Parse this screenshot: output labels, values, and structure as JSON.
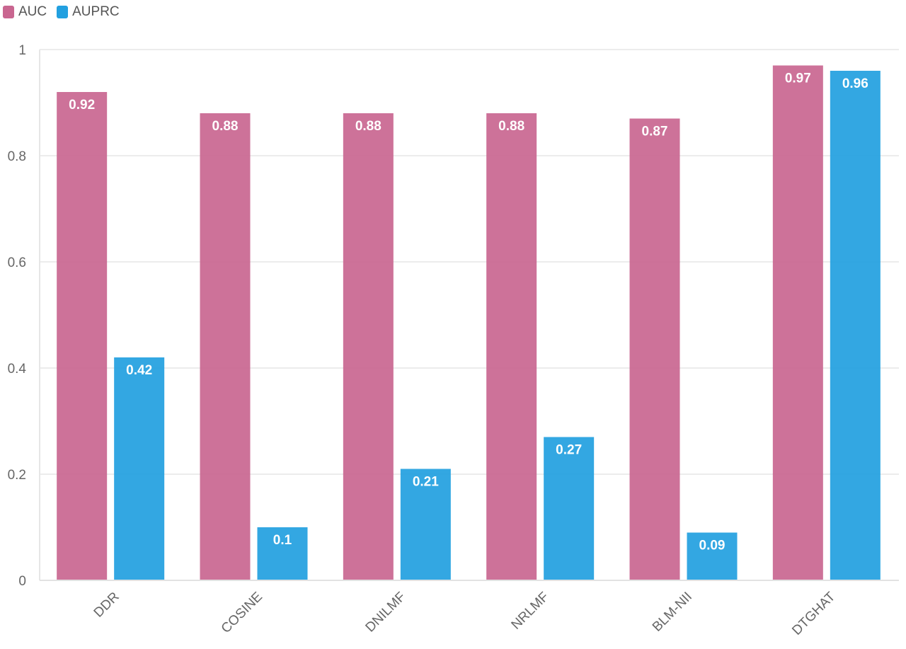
{
  "chart_data": {
    "type": "bar",
    "title": "",
    "xlabel": "",
    "ylabel": "",
    "categories": [
      "DDR",
      "COSINE",
      "DNILMF",
      "NRLMF",
      "BLM-NII",
      "DTGHAT"
    ],
    "series": [
      {
        "name": "AUC",
        "color": "#c96690",
        "values": [
          0.92,
          0.88,
          0.88,
          0.88,
          0.87,
          0.97
        ],
        "labels": [
          "0.92",
          "0.88",
          "0.88",
          "0.88",
          "0.87",
          "0.97"
        ]
      },
      {
        "name": "AUPRC",
        "color": "#22a0e0",
        "values": [
          0.42,
          0.1,
          0.21,
          0.27,
          0.09,
          0.96
        ],
        "labels": [
          "0.42",
          "0.1",
          "0.21",
          "0.27",
          "0.09",
          "0.96"
        ]
      }
    ],
    "ylim": [
      0,
      1
    ],
    "yticks": [
      0,
      0.2,
      0.4,
      0.6,
      0.8,
      1
    ],
    "ytick_labels": [
      "0",
      "0.2",
      "0.4",
      "0.6",
      "0.8",
      "1"
    ],
    "grid": true,
    "legend": "top-left"
  }
}
